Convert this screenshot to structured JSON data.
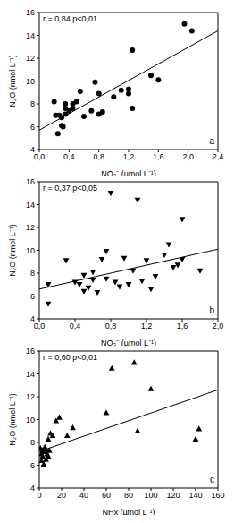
{
  "chart_data": [
    {
      "type": "scatter",
      "panel": "a",
      "annotation": "r = 0,84 p<0,01",
      "x_label": "NO₂⁻ (µmol L⁻¹)",
      "y_label": "N₂O (nmol L⁻¹)",
      "marker": "circle",
      "color": "#000000",
      "x": [
        0.2,
        0.22,
        0.25,
        0.27,
        0.3,
        0.3,
        0.32,
        0.35,
        0.35,
        0.35,
        0.4,
        0.45,
        0.45,
        0.5,
        0.55,
        0.6,
        0.7,
        0.75,
        0.8,
        0.8,
        0.85,
        1.0,
        1.1,
        1.2,
        1.2,
        1.25,
        1.25,
        1.5,
        1.6,
        1.95,
        2.05
      ],
      "y": [
        8.2,
        7.0,
        5.4,
        7.0,
        6.1,
        6.8,
        6.0,
        7.1,
        7.6,
        8.0,
        7.4,
        7.6,
        8.0,
        8.2,
        9.1,
        6.9,
        7.4,
        9.9,
        7.1,
        8.9,
        7.3,
        8.6,
        9.2,
        9.3,
        8.9,
        7.6,
        12.7,
        10.5,
        10.1,
        15.0,
        14.4
      ],
      "fit": {
        "x": [
          0,
          2.4
        ],
        "y": [
          5.7,
          14.4
        ]
      },
      "xlim": [
        0,
        2.4
      ],
      "xticks": [
        {
          "value": 0,
          "label": "0,0"
        },
        {
          "value": 0.4,
          "label": "0,4"
        },
        {
          "value": 0.8,
          "label": "0,8"
        },
        {
          "value": 1.2,
          "label": "1,2"
        },
        {
          "value": 1.6,
          "label": "1,6"
        },
        {
          "value": 2.0,
          "label": "2,0"
        },
        {
          "value": 2.4,
          "label": "2,4"
        }
      ],
      "ylim": [
        4,
        16
      ],
      "yticks": [
        4,
        6,
        8,
        10,
        12,
        14,
        16
      ]
    },
    {
      "type": "scatter",
      "panel": "b",
      "annotation": "r = 0,37 p<0,05",
      "x_label": "NO₃⁻ (µmol L⁻¹)",
      "y_label": "N₂O (nmol L⁻¹)",
      "marker": "triangle-down",
      "color": "#000000",
      "x": [
        0.1,
        0.1,
        0.3,
        0.4,
        0.45,
        0.5,
        0.5,
        0.55,
        0.6,
        0.6,
        0.65,
        0.7,
        0.75,
        0.75,
        0.8,
        0.85,
        0.9,
        0.95,
        1.0,
        1.05,
        1.1,
        1.15,
        1.2,
        1.25,
        1.3,
        1.4,
        1.45,
        1.5,
        1.55,
        1.6,
        1.6,
        1.8
      ],
      "y": [
        7.0,
        5.3,
        9.1,
        7.2,
        7.0,
        6.4,
        7.8,
        6.7,
        8.1,
        7.4,
        6.3,
        9.2,
        7.5,
        9.9,
        15.0,
        7.2,
        6.8,
        9.3,
        7.0,
        8.2,
        14.4,
        7.3,
        9.1,
        6.6,
        7.7,
        9.6,
        10.5,
        8.5,
        8.7,
        12.7,
        9.2,
        8.2
      ],
      "fit": {
        "x": [
          0,
          2.0
        ],
        "y": [
          6.6,
          10.1
        ]
      },
      "xlim": [
        0,
        2.0
      ],
      "xticks": [
        {
          "value": 0,
          "label": "0,0"
        },
        {
          "value": 0.4,
          "label": "0,4"
        },
        {
          "value": 0.8,
          "label": "0,8"
        },
        {
          "value": 1.2,
          "label": "1,2"
        },
        {
          "value": 1.6,
          "label": "1,6"
        },
        {
          "value": 2.0,
          "label": "2,0"
        }
      ],
      "ylim": [
        4,
        16
      ],
      "yticks": [
        4,
        6,
        8,
        10,
        12,
        14,
        16
      ]
    },
    {
      "type": "scatter",
      "panel": "c",
      "annotation": "r = 0,60 p<0,01",
      "x_label": "NHx (µmol L⁻¹)",
      "y_label": "N₂O (nmol L⁻¹)",
      "marker": "triangle",
      "color": "#000000",
      "x": [
        1,
        2,
        2,
        3,
        3,
        4,
        4,
        5,
        6,
        6,
        7,
        8,
        8,
        9,
        10,
        12,
        15,
        18,
        25,
        30,
        60,
        65,
        85,
        88,
        100,
        140,
        143
      ],
      "y": [
        7.5,
        7.0,
        6.4,
        6.8,
        7.3,
        6.1,
        7.2,
        7.6,
        6.5,
        7.4,
        7.0,
        6.8,
        8.3,
        7.3,
        8.8,
        8.6,
        9.9,
        10.2,
        8.6,
        9.3,
        10.6,
        14.5,
        15.0,
        9.0,
        12.7,
        8.3,
        9.2
      ],
      "fit": {
        "x": [
          0,
          160
        ],
        "y": [
          7.2,
          12.6
        ]
      },
      "xlim": [
        0,
        160
      ],
      "xticks": [
        0,
        20,
        40,
        60,
        80,
        100,
        120,
        140,
        160
      ],
      "ylim": [
        4,
        16
      ],
      "yticks": [
        4,
        6,
        8,
        10,
        12,
        14,
        16
      ]
    }
  ]
}
